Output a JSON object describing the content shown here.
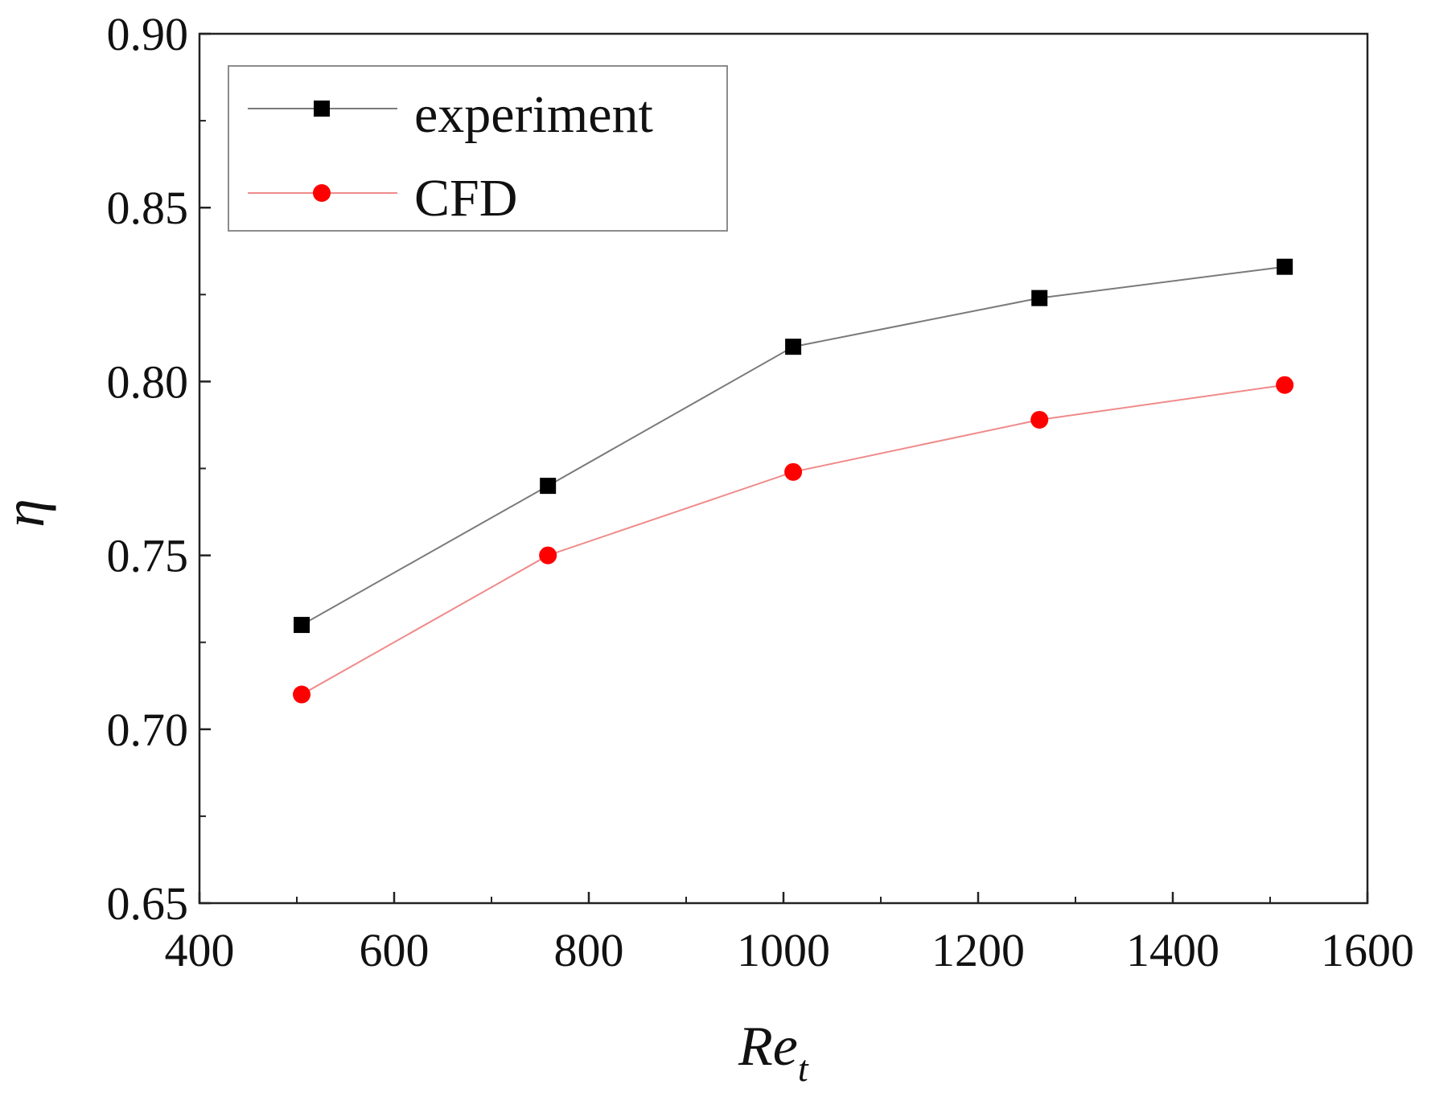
{
  "chart_data": {
    "type": "line",
    "title": "",
    "xlabel": "Re",
    "xlabel_subscript": "t",
    "ylabel": "η",
    "xlim": [
      400,
      1600
    ],
    "ylim": [
      0.65,
      0.9
    ],
    "x_ticks": [
      400,
      600,
      800,
      1000,
      1200,
      1400,
      1600
    ],
    "x_tick_labels": [
      "400",
      "600",
      "800",
      "1000",
      "1200",
      "1400",
      "1600"
    ],
    "y_ticks": [
      0.65,
      0.7,
      0.75,
      0.8,
      0.85,
      0.9
    ],
    "y_tick_labels": [
      "0.65",
      "0.70",
      "0.75",
      "0.80",
      "0.85",
      "0.90"
    ],
    "x_minor_step": 100,
    "y_minor_step": 0.025,
    "grid": false,
    "legend_position": "top-left",
    "series": [
      {
        "name": "experiment",
        "marker": "square",
        "color": "#000000",
        "line_color": "#7a7a7a",
        "x": [
          505,
          758,
          1010,
          1263,
          1515
        ],
        "y": [
          0.73,
          0.77,
          0.81,
          0.824,
          0.833
        ]
      },
      {
        "name": "CFD",
        "marker": "circle",
        "color": "#ff0000",
        "line_color": "#f08a8a",
        "x": [
          505,
          758,
          1010,
          1263,
          1515
        ],
        "y": [
          0.71,
          0.75,
          0.774,
          0.789,
          0.799
        ]
      }
    ]
  }
}
